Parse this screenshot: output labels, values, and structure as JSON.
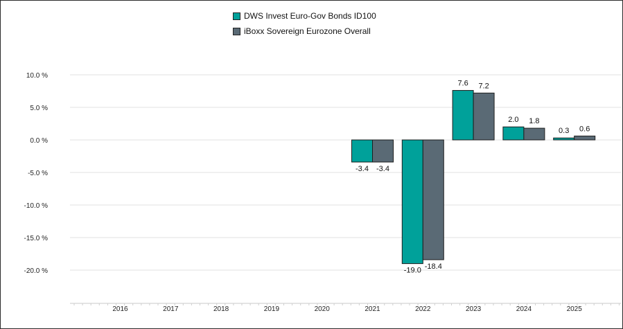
{
  "chart_data": {
    "type": "bar",
    "categories": [
      "2016",
      "2017",
      "2018",
      "2019",
      "2020",
      "2021",
      "2022",
      "2023",
      "2024",
      "2025"
    ],
    "series": [
      {
        "name": "DWS Invest Euro-Gov Bonds ID100",
        "color": "#00a19a",
        "values": [
          null,
          null,
          null,
          null,
          null,
          -3.4,
          -19.0,
          7.6,
          2.0,
          0.3
        ],
        "labels": [
          "",
          "",
          "",
          "",
          "",
          "-3.4",
          "-19.0",
          "7.6",
          "2.0",
          "0.3"
        ]
      },
      {
        "name": "iBoxx Sovereign Eurozone Overall",
        "color": "#5a6a75",
        "values": [
          null,
          null,
          null,
          null,
          null,
          -3.4,
          -18.4,
          7.2,
          1.8,
          0.6
        ],
        "labels": [
          "",
          "",
          "",
          "",
          "",
          "-3.4",
          "-18.4",
          "7.2",
          "1.8",
          "0.6"
        ]
      }
    ],
    "yticks": [
      10,
      5,
      0,
      -5,
      -10,
      -15,
      -20
    ],
    "ytick_labels": [
      "10.0 %",
      "5.0 %",
      "0.0 %",
      "-5.0 %",
      "-10.0 %",
      "-15.0 %",
      "-20.0 %"
    ],
    "ylim": [
      -25,
      10
    ],
    "grid": true,
    "legend_position": "top-center"
  }
}
